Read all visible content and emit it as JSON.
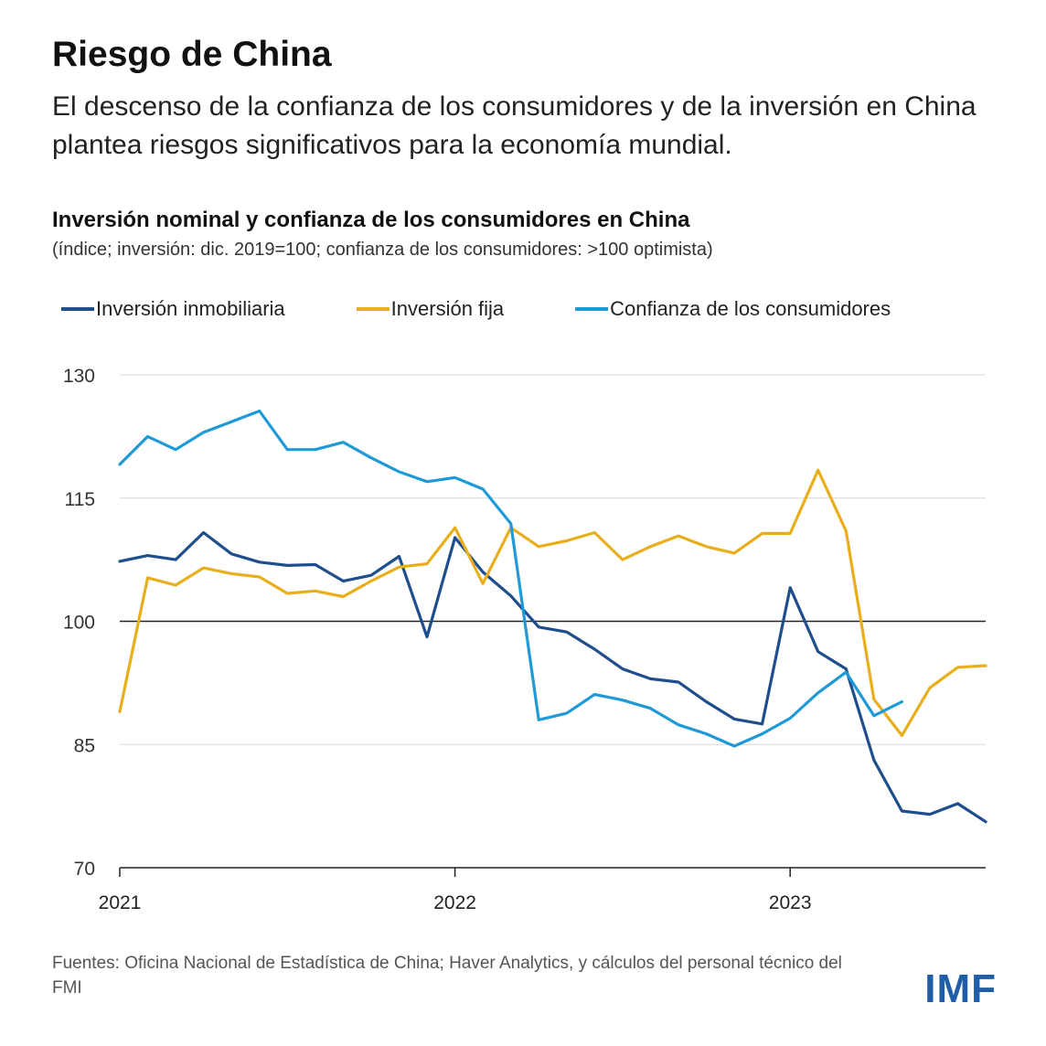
{
  "header": {
    "title": "Riesgo de China",
    "subtitle": "El descenso de la confianza de los consumidores y de la inversión en China plantea riesgos significativos para la economía mundial."
  },
  "chart_data": {
    "type": "line",
    "title": "Inversión nominal y confianza de los consumidores en China",
    "subtitle": "(índice; inversión: dic. 2019=100; confianza de los consumidores: >100 optimista)",
    "xlabel": "",
    "ylabel": "",
    "ylim": [
      70,
      130
    ],
    "yticks": [
      130,
      115,
      100,
      85,
      70
    ],
    "xlim": [
      2021,
      2023.5833
    ],
    "xticks": [
      {
        "value": 2021,
        "label": "2021"
      },
      {
        "value": 2022,
        "label": "2022"
      },
      {
        "value": 2023,
        "label": "2023"
      }
    ],
    "reference_line": 100,
    "legend_position": "top",
    "series": [
      {
        "name": "Inversión inmobiliaria",
        "color": "#1f4e8c",
        "x": [
          2021,
          2021.0833,
          2021.1667,
          2021.25,
          2021.3333,
          2021.4167,
          2021.5,
          2021.5833,
          2021.6667,
          2021.75,
          2021.8333,
          2021.9167,
          2022,
          2022.0833,
          2022.1667,
          2022.25,
          2022.3333,
          2022.4167,
          2022.5,
          2022.5833,
          2022.6667,
          2022.75,
          2022.8333,
          2022.9167,
          2023,
          2023.0833,
          2023.1667,
          2023.25,
          2023.3333,
          2023.4167,
          2023.5,
          2023.5833
        ],
        "values": [
          107.3,
          108.0,
          107.5,
          110.8,
          108.2,
          107.2,
          106.8,
          106.9,
          104.9,
          105.6,
          107.9,
          98.1,
          110.2,
          106.0,
          103.1,
          99.3,
          98.7,
          96.6,
          94.2,
          93.0,
          92.6,
          90.2,
          88.1,
          87.5,
          104.1,
          96.3,
          94.2,
          83.1,
          76.9,
          76.5,
          77.8,
          75.6
        ]
      },
      {
        "name": "Inversión fija",
        "color": "#e8ae1c",
        "x": [
          2021,
          2021.0833,
          2021.1667,
          2021.25,
          2021.3333,
          2021.4167,
          2021.5,
          2021.5833,
          2021.6667,
          2021.75,
          2021.8333,
          2021.9167,
          2022,
          2022.0833,
          2022.1667,
          2022.25,
          2022.3333,
          2022.4167,
          2022.5,
          2022.5833,
          2022.6667,
          2022.75,
          2022.8333,
          2022.9167,
          2023,
          2023.0833,
          2023.1667,
          2023.25,
          2023.3333,
          2023.4167,
          2023.5,
          2023.5833
        ],
        "values": [
          89.0,
          105.3,
          104.4,
          106.5,
          105.8,
          105.4,
          103.4,
          103.7,
          103.0,
          104.9,
          106.6,
          107.0,
          111.4,
          104.6,
          111.4,
          109.1,
          109.8,
          110.8,
          107.5,
          109.1,
          110.4,
          109.1,
          108.3,
          110.7,
          110.7,
          118.4,
          111.0,
          90.5,
          86.1,
          91.9,
          94.4,
          94.6
        ]
      },
      {
        "name": "Confianza de los consumidores",
        "color": "#1f9ad6",
        "x": [
          2021,
          2021.0833,
          2021.1667,
          2021.25,
          2021.3333,
          2021.4167,
          2021.5,
          2021.5833,
          2021.6667,
          2021.75,
          2021.8333,
          2021.9167,
          2022,
          2022.0833,
          2022.1667,
          2022.25,
          2022.3333,
          2022.4167,
          2022.5,
          2022.5833,
          2022.6667,
          2022.75,
          2022.8333,
          2022.9167,
          2023,
          2023.0833,
          2023.1667,
          2023.25,
          2023.3333
        ],
        "values": [
          119.1,
          122.5,
          120.9,
          123.0,
          124.3,
          125.6,
          120.9,
          120.9,
          121.8,
          119.9,
          118.2,
          117.0,
          117.5,
          116.1,
          111.9,
          88.0,
          88.8,
          91.1,
          90.4,
          89.4,
          87.4,
          86.3,
          84.8,
          86.3,
          88.2,
          91.3,
          93.8,
          88.5,
          90.2
        ]
      }
    ]
  },
  "footer": {
    "source": "Fuentes: Oficina Nacional de Estadística de China; Haver Analytics, y cálculos del personal técnico del FMI",
    "logo": "IMF"
  }
}
